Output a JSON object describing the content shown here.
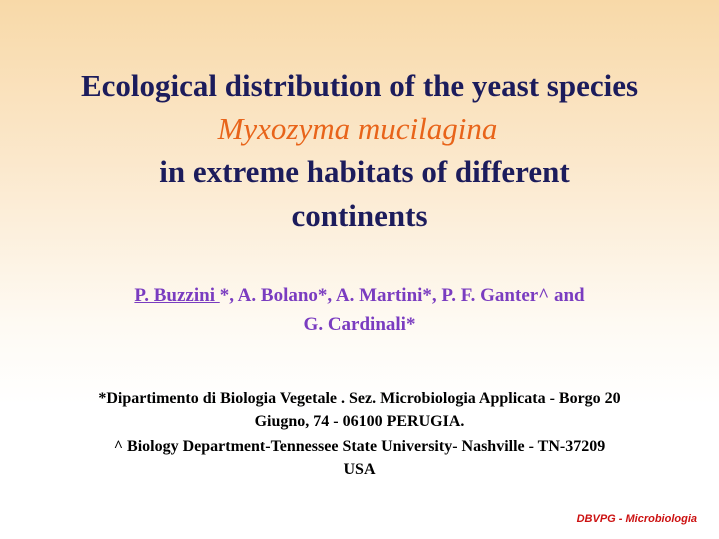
{
  "title": {
    "lines": [
      "Ecological distribution of the yeast species",
      "Myxozyma mucilagina",
      "in extreme habitats of different",
      "continents"
    ]
  },
  "authors": {
    "first_author": "P. Buzzini ",
    "line1_rest": "*, A. Bolano*, A. Martini*, P. F. Ganter^ and",
    "line2": "G. Cardinali*"
  },
  "affiliations": [
    "*Dipartimento di Biologia Vegetale . Sez. Microbiologia Applicata - Borgo 20",
    "Giugno, 74 - 06100 PERUGIA.",
    "^ Biology Department-Tennessee State University- Nashville - TN-37209",
    "USA"
  ],
  "footer": "DBVPG - Microbiologia"
}
